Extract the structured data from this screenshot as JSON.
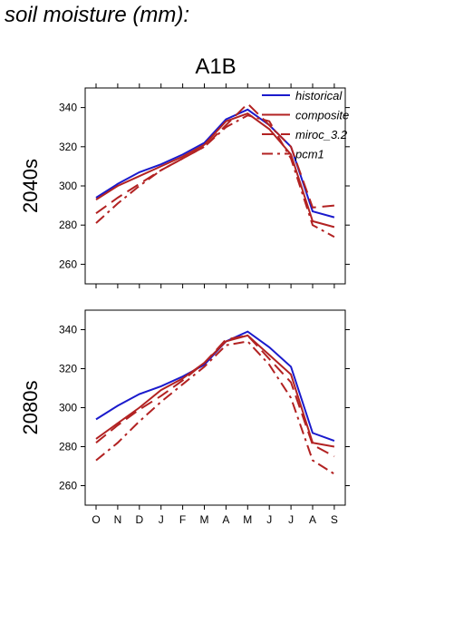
{
  "header": {
    "title": "soil moisture (mm):"
  },
  "chart_data": {
    "type": "line",
    "title": "A1B",
    "categories": [
      "O",
      "N",
      "D",
      "J",
      "F",
      "M",
      "A",
      "M",
      "J",
      "J",
      "A",
      "S"
    ],
    "ylim": [
      250,
      350
    ],
    "yticks": [
      260,
      280,
      300,
      320,
      340
    ],
    "legend": {
      "position": "top-right"
    },
    "series_styles": [
      {
        "name": "historical",
        "color": "#1a1acc",
        "dash": "solid"
      },
      {
        "name": "composite",
        "color": "#b22222",
        "dash": "solid"
      },
      {
        "name": "miroc_3.2",
        "color": "#b22222",
        "dash": "longdash"
      },
      {
        "name": "pcm1",
        "color": "#b22222",
        "dash": "dashdot"
      }
    ],
    "panels": [
      {
        "label": "2040s",
        "series": [
          {
            "name": "historical",
            "values": [
              294,
              301,
              307,
              311,
              316,
              322,
              334,
              339,
              331,
              320,
              287,
              284
            ]
          },
          {
            "name": "composite",
            "values": [
              293,
              300,
              305,
              310,
              315,
              321,
              333,
              337,
              329,
              316,
              282,
              279
            ]
          },
          {
            "name": "miroc_3.2",
            "values": [
              286,
              294,
              301,
              308,
              314,
              320,
              331,
              342,
              331,
              320,
              289,
              290
            ]
          },
          {
            "name": "pcm1",
            "values": [
              281,
              291,
              300,
              308,
              314,
              320,
              330,
              336,
              333,
              314,
              280,
              274
            ]
          }
        ]
      },
      {
        "label": "2080s",
        "series": [
          {
            "name": "historical",
            "values": [
              294,
              301,
              307,
              311,
              316,
              322,
              334,
              339,
              331,
              321,
              287,
              283
            ]
          },
          {
            "name": "composite",
            "values": [
              284,
              292,
              300,
              309,
              315,
              323,
              334,
              337,
              327,
              317,
              282,
              280
            ]
          },
          {
            "name": "miroc_3.2",
            "values": [
              282,
              291,
              299,
              306,
              314,
              323,
              335,
              337,
              325,
              313,
              281,
              275
            ]
          },
          {
            "name": "pcm1",
            "values": [
              273,
              282,
              293,
              303,
              312,
              321,
              332,
              334,
              322,
              305,
              273,
              266
            ]
          }
        ]
      }
    ]
  }
}
